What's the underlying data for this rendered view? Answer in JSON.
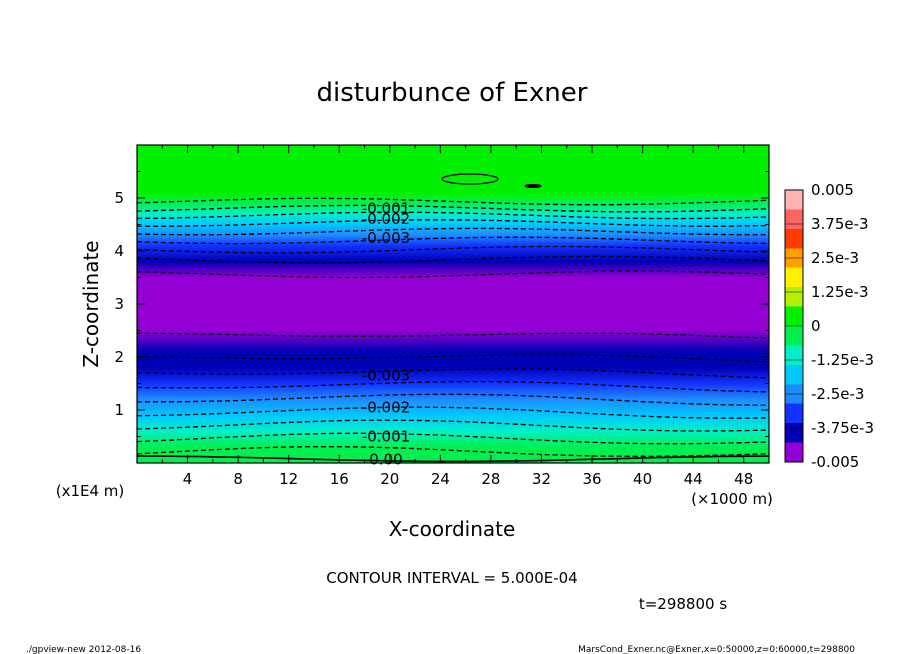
{
  "chart_data": {
    "type": "heatmap",
    "title": "disturbunce of Exner",
    "xlabel": "X-coordinate",
    "ylabel": "Z-coordinate",
    "x_unit": "(×1000 m)",
    "y_unit": "(x1E4 m)",
    "xlim": [
      0,
      50
    ],
    "ylim": [
      0,
      6
    ],
    "x_ticks": [
      "4",
      "8",
      "12",
      "16",
      "20",
      "24",
      "28",
      "32",
      "36",
      "40",
      "44",
      "48"
    ],
    "y_ticks": [
      "1",
      "2",
      "3",
      "4",
      "5"
    ],
    "contour_labels": [
      "-0.001",
      "-0.002",
      "-0.003",
      "-0.003",
      "-0.002",
      "-0.001",
      "0.00"
    ],
    "colorbar": {
      "labels": [
        "0.005",
        "3.75e-3",
        "2.5e-3",
        "1.25e-3",
        "0",
        "-1.25e-3",
        "-2.5e-3",
        "-3.75e-3",
        "-0.005"
      ],
      "range": [
        -0.005,
        0.005
      ]
    },
    "profile": {
      "z": [
        0.0,
        0.3,
        0.6,
        0.9,
        1.2,
        1.5,
        1.8,
        2.1,
        2.5,
        3.0,
        3.5,
        3.8,
        4.1,
        4.3,
        4.5,
        4.7,
        4.9,
        5.1,
        6.0
      ],
      "value": [
        -0.0001,
        -0.0007,
        -0.0013,
        -0.0019,
        -0.0025,
        -0.0031,
        -0.0037,
        -0.0042,
        -0.0046,
        -0.0048,
        -0.0046,
        -0.0041,
        -0.0033,
        -0.0027,
        -0.0021,
        -0.0014,
        -0.0006,
        0.0,
        0.0
      ]
    },
    "contour_interval_text": "CONTOUR INTERVAL = 5.000E-04",
    "time_text": "t=298800 s"
  },
  "footer": {
    "left": "./gpview-new   2012-08-16",
    "right": "MarsCond_Exner.nc@Exner,x=0:50000,z=0:60000,t=298800"
  },
  "colors": {
    "scale": [
      "#9400d3",
      "#0000b4",
      "#1432ff",
      "#1e8cff",
      "#00c8ff",
      "#00f0c8",
      "#00f050",
      "#00f000",
      "#b4f000",
      "#fff000",
      "#ffa000",
      "#ff3c00",
      "#ff6464",
      "#ffb4b4"
    ]
  }
}
